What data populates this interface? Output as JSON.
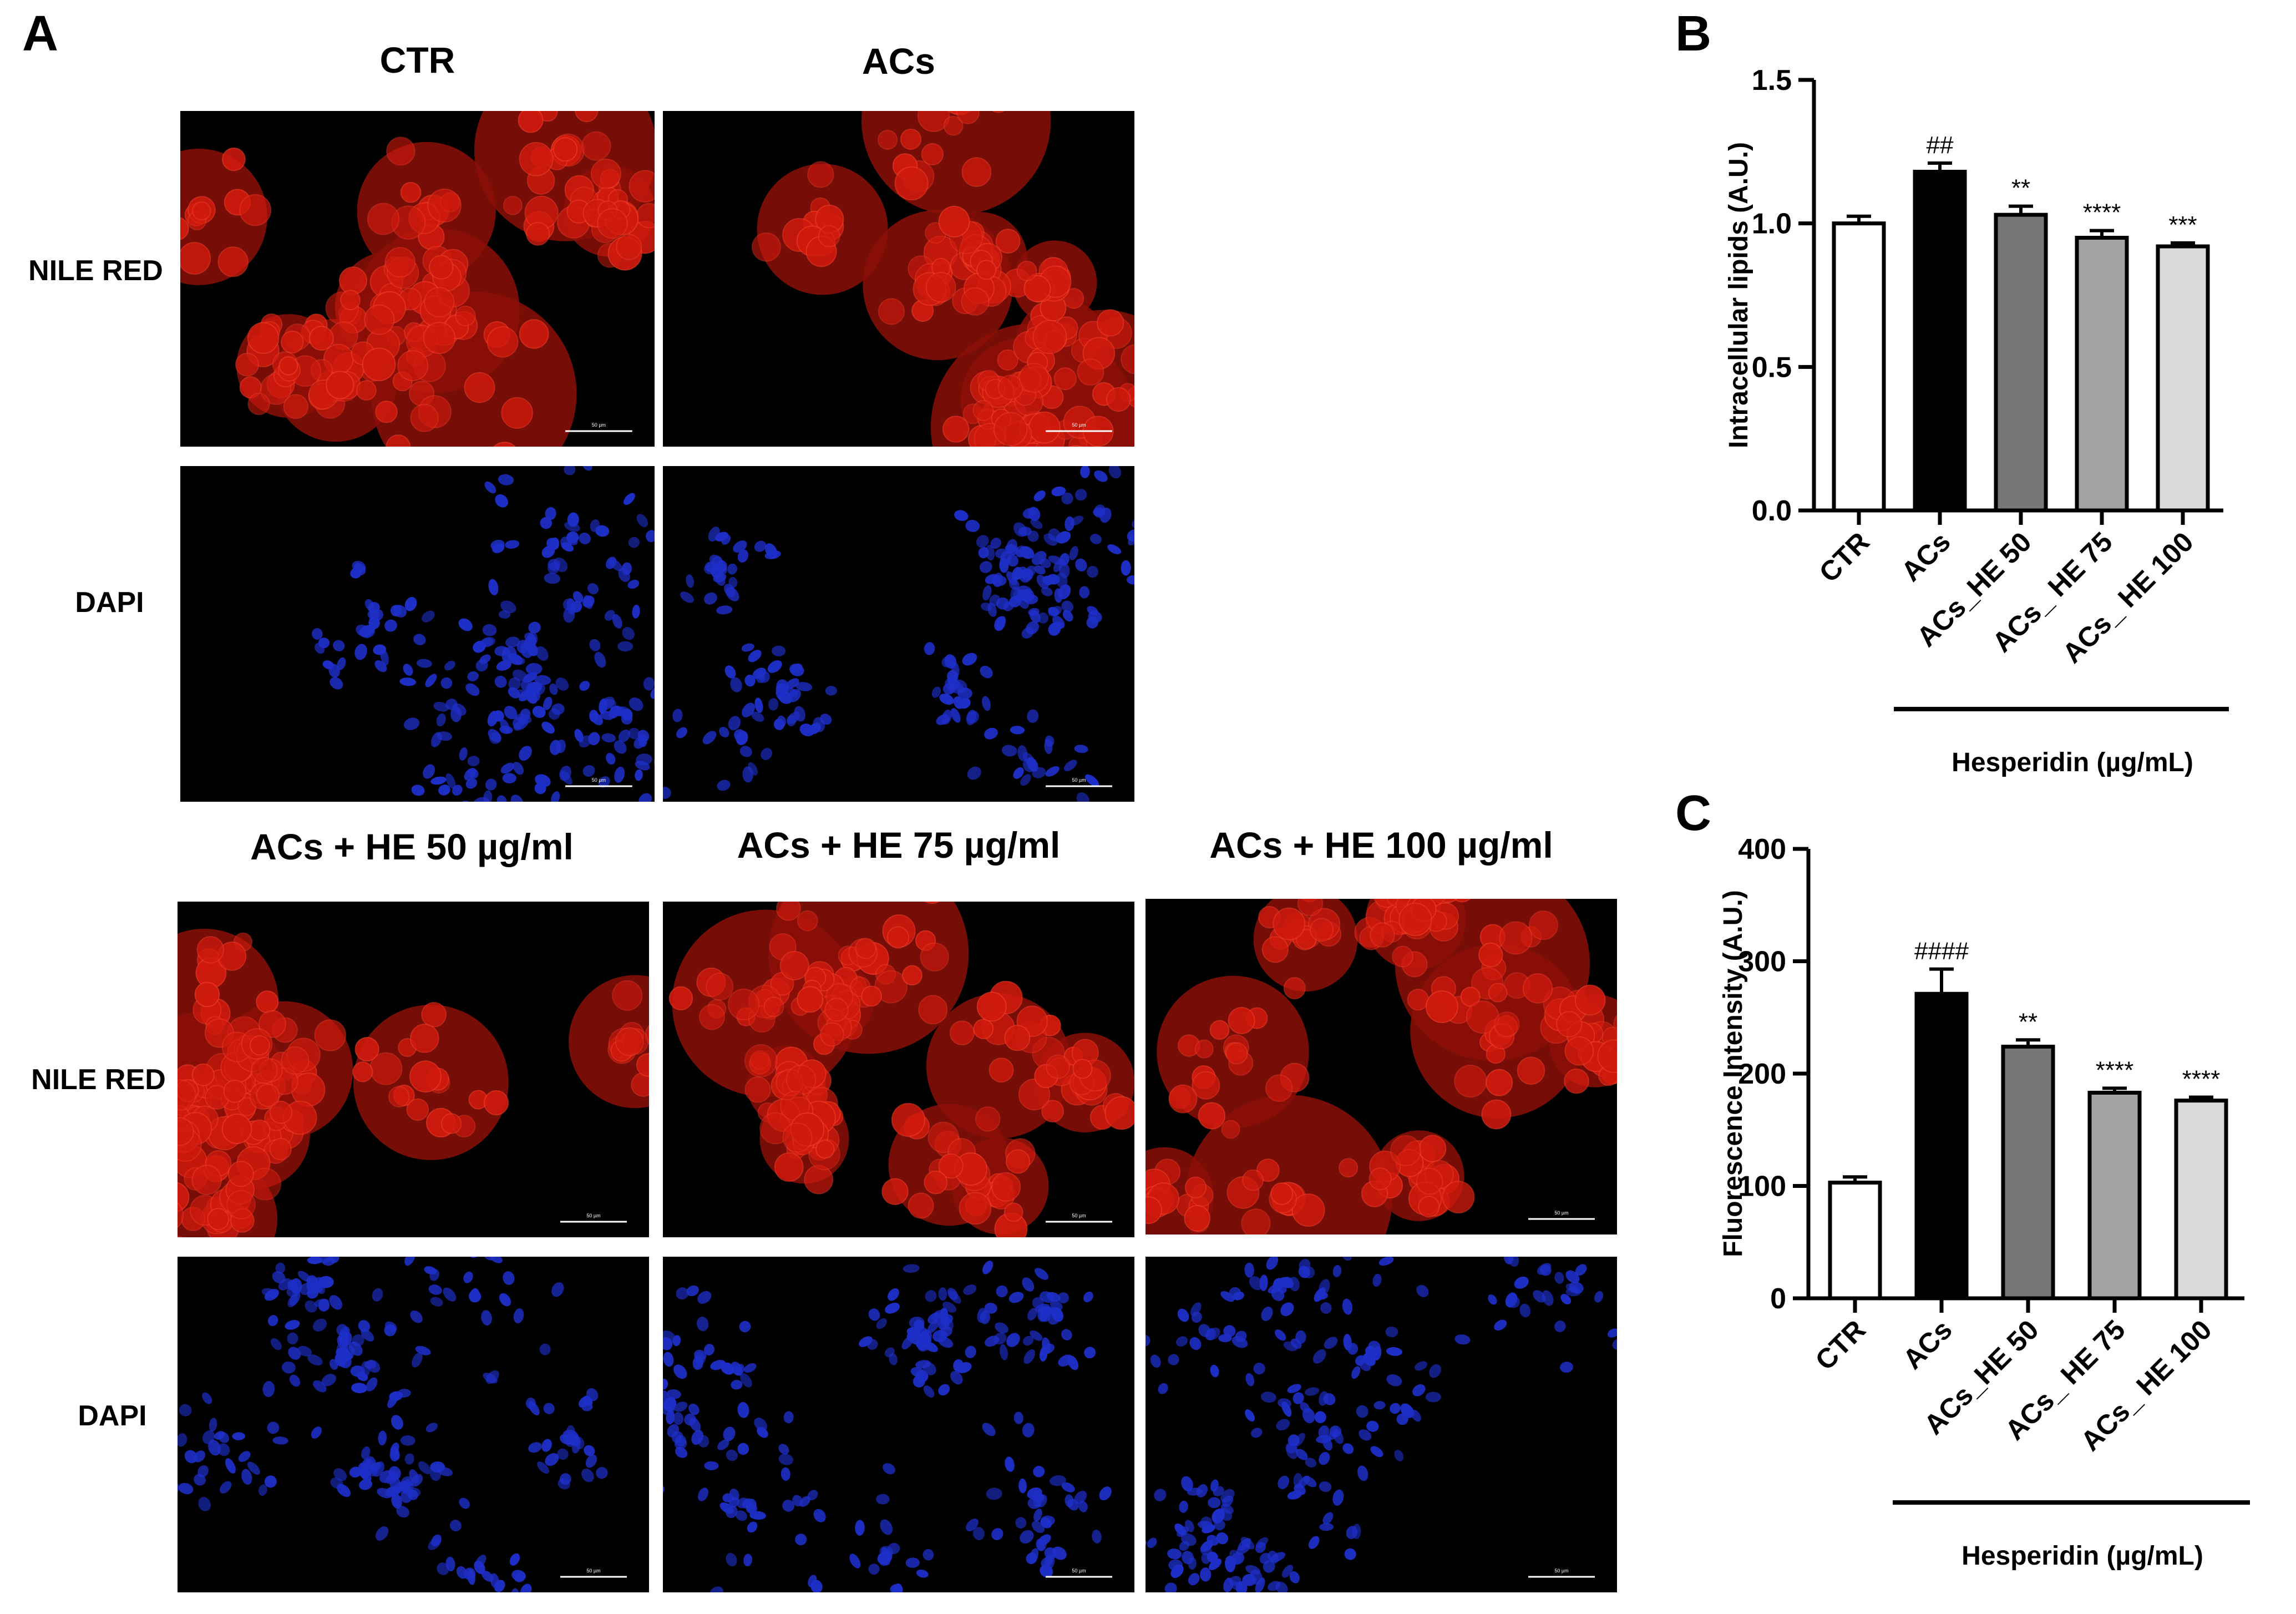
{
  "panelA": {
    "letter": "A",
    "column_titles": [
      "CTR",
      "ACs",
      "ACs + HE 50 µg/ml",
      "ACs + HE 75 µg/ml",
      "ACs + HE 100 µg/ml"
    ],
    "row_labels": {
      "red": "NILE RED",
      "blue": "DAPI"
    },
    "stain_colors": {
      "red": "#d11a0e",
      "blue": "#1e2fc9"
    },
    "scale_bar_text": "50 µm"
  },
  "chart_data": [
    {
      "panel": "B",
      "type": "bar",
      "categories": [
        "CTR",
        "ACs",
        "ACs_HE 50",
        "ACs_ HE 75",
        "ACs_ HE 100"
      ],
      "values": [
        1.0,
        1.18,
        1.03,
        0.95,
        0.92
      ],
      "errors": [
        0.025,
        0.03,
        0.03,
        0.025,
        0.012
      ],
      "annotations": [
        "",
        "##",
        "**",
        "****",
        "***"
      ],
      "bar_colors": [
        "#ffffff",
        "#000000",
        "#777777",
        "#a3a3a5",
        "#d9d9d9"
      ],
      "ylabel": "Intracellular lipids (A.U.)",
      "xlabel": "Hesperidin (µg/mL)",
      "ylim": [
        0,
        1.5
      ],
      "yticks": [
        "0.0",
        "0.5",
        "1.0",
        "1.5"
      ],
      "grid": false
    },
    {
      "panel": "C",
      "type": "bar",
      "categories": [
        "CTR",
        "ACs",
        "ACs_HE 50",
        "ACs_ HE 75",
        "ACs_ HE 100"
      ],
      "values": [
        103,
        271,
        224,
        183,
        176
      ],
      "errors": [
        5,
        22,
        6,
        4,
        3
      ],
      "annotations": [
        "",
        "####",
        "**",
        "****",
        "****"
      ],
      "bar_colors": [
        "#ffffff",
        "#000000",
        "#777777",
        "#a3a3a5",
        "#d9d9d9"
      ],
      "ylabel": "Fluorescence Intensity (A.U.)",
      "xlabel": "Hesperidin (µg/mL)",
      "ylim": [
        0,
        400
      ],
      "yticks": [
        "0",
        "100",
        "200",
        "300",
        "400"
      ],
      "grid": false
    }
  ]
}
